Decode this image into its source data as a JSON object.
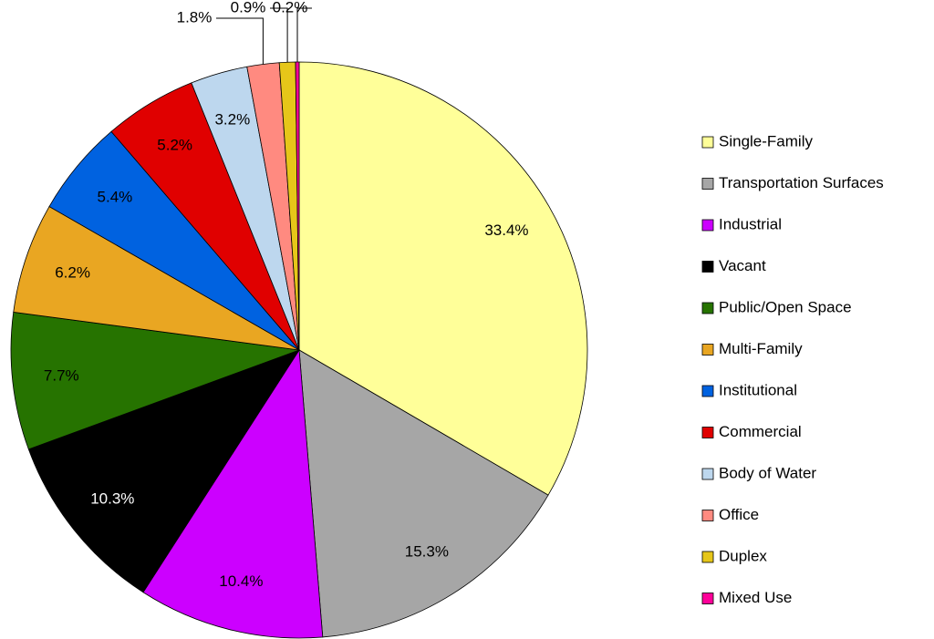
{
  "chart_data": {
    "type": "pie",
    "categories": [
      "Single-Family",
      "Transportation Surfaces",
      "Industrial",
      "Vacant",
      "Public/Open Space",
      "Multi-Family",
      "Institutional",
      "Commercial",
      "Body of Water",
      "Office",
      "Duplex",
      "Mixed Use"
    ],
    "values": [
      33.4,
      15.3,
      10.4,
      10.3,
      7.7,
      6.2,
      5.4,
      5.2,
      3.2,
      1.8,
      0.9,
      0.2
    ],
    "value_labels": [
      "33.4%",
      "15.3%",
      "10.4%",
      "10.3%",
      "7.7%",
      "6.2%",
      "5.4%",
      "5.2%",
      "3.2%",
      "1.8%",
      "0.9%",
      "0.2%"
    ],
    "colors": [
      "#ffff99",
      "#a6a6a6",
      "#cc00ff",
      "#000000",
      "#267300",
      "#e9a622",
      "#0062e0",
      "#e00000",
      "#bdd7ee",
      "#ff8a80",
      "#e6c619",
      "#ff0099"
    ],
    "legend": "right"
  }
}
